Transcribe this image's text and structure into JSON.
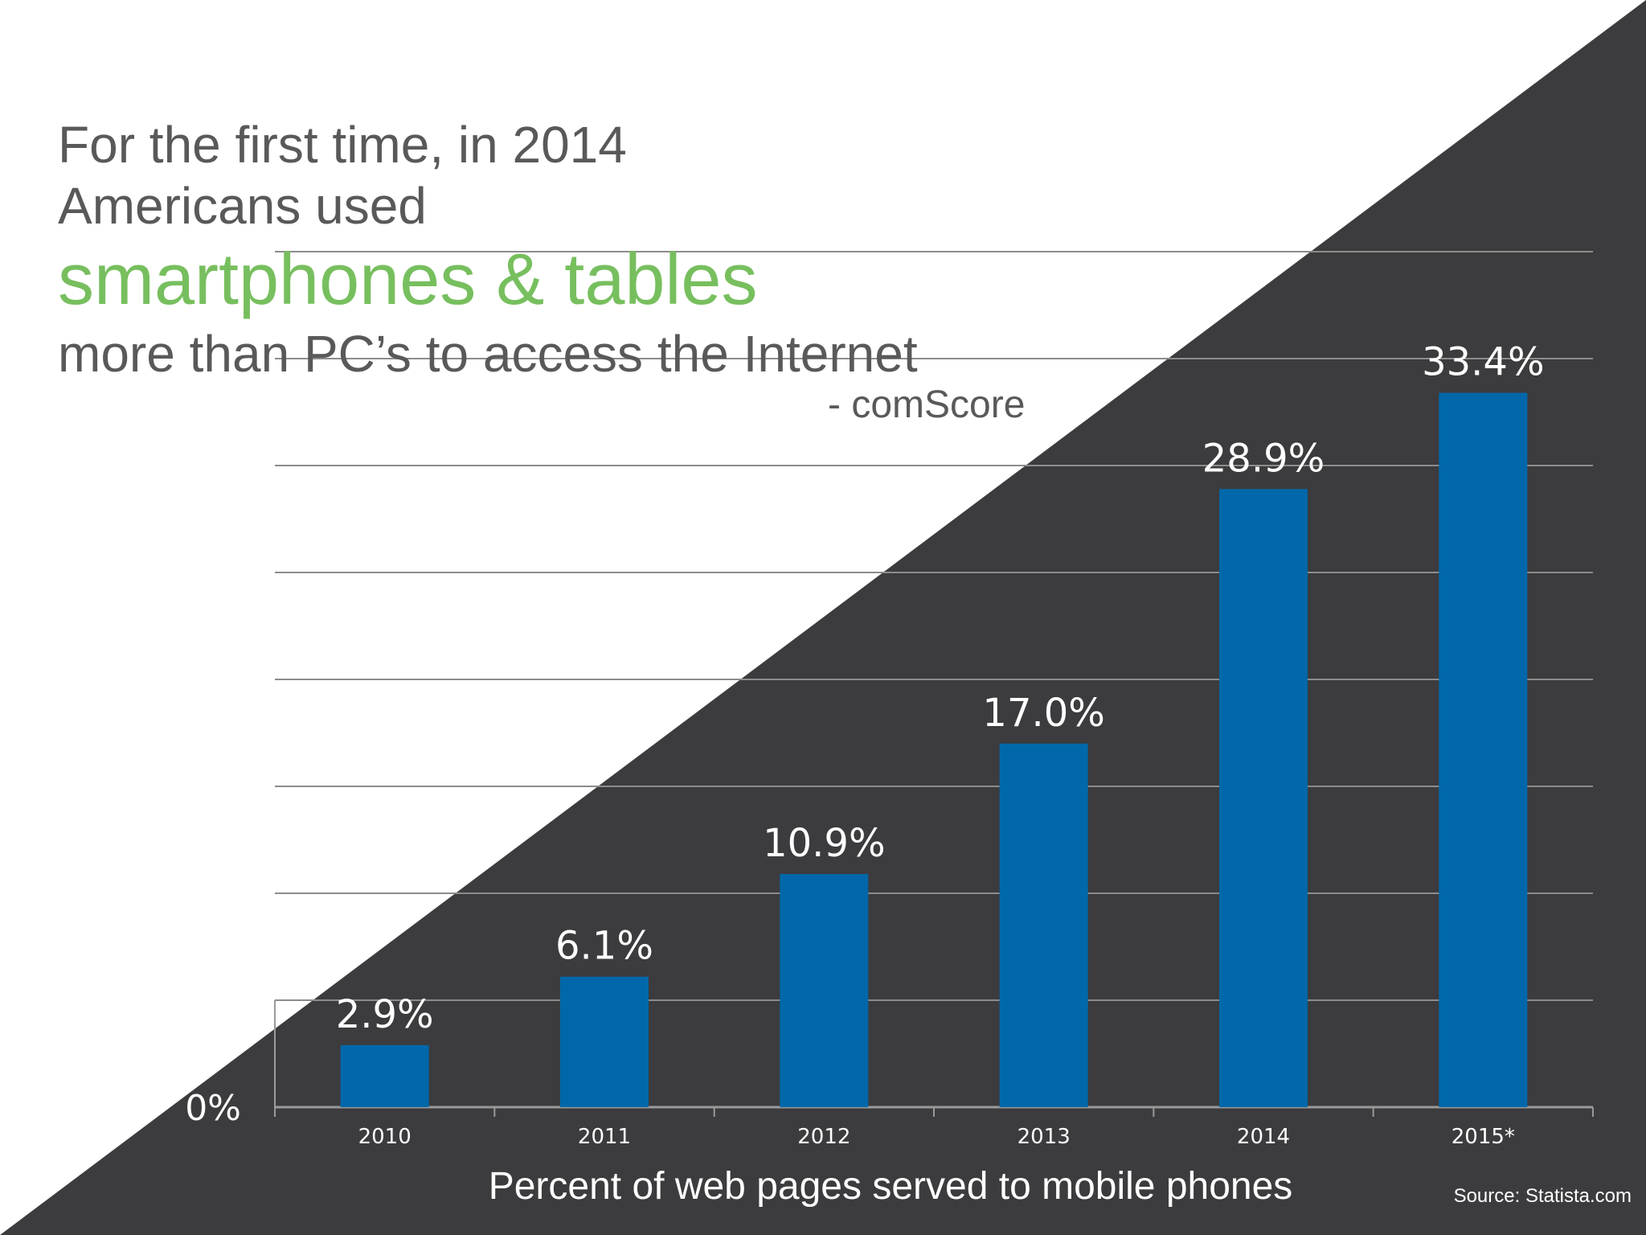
{
  "headline": {
    "line1": "For the first time, in 2014",
    "line2": "Americans used",
    "highlight": "smartphones & tables",
    "line4": "more than PC’s to access the Internet",
    "attribution": "- comScore"
  },
  "colors": {
    "background_light": "#ffffff",
    "background_dark": "#3c3b3e",
    "bar": "#0068aa",
    "highlight": "#77bf5e",
    "headline_text": "#595959",
    "gridline": "#8c8c8c"
  },
  "chart_data": {
    "type": "bar",
    "title": "",
    "categories": [
      "2010",
      "2011",
      "2012",
      "2013",
      "2014",
      "2015*"
    ],
    "values": [
      2.9,
      6.1,
      10.9,
      17.0,
      28.9,
      33.4
    ],
    "data_labels": [
      "2.9%",
      "6.1%",
      "10.9%",
      "17.0%",
      "28.9%",
      "33.4%"
    ],
    "y_tick_label": "0%",
    "xlabel": "Percent of web pages served to mobile phones",
    "ylabel": "",
    "ylim": [
      0,
      40
    ],
    "grid": true,
    "gridline_values": [
      5,
      10,
      15,
      20,
      25,
      30,
      35,
      40
    ]
  },
  "source": "Source: Statista.com"
}
